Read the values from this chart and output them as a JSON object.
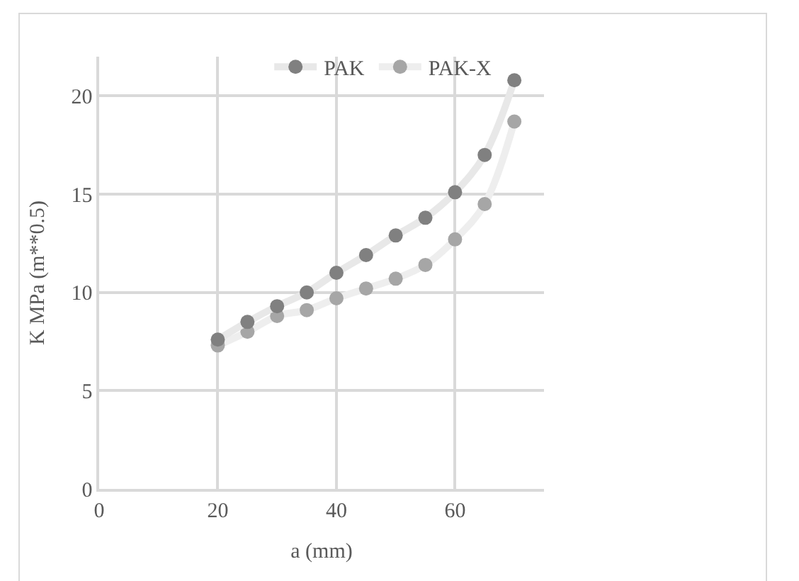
{
  "chart_data": {
    "type": "line",
    "xlabel": "a (mm)",
    "ylabel": "K MPa (m**0.5)",
    "x": [
      20,
      25,
      30,
      35,
      40,
      45,
      50,
      55,
      60,
      65,
      70
    ],
    "series": [
      {
        "name": "PAK",
        "color": "#808080",
        "values": [
          7.6,
          8.5,
          9.3,
          10.0,
          11.0,
          11.9,
          12.9,
          13.8,
          15.1,
          17.0,
          20.8
        ]
      },
      {
        "name": "PAK-X",
        "color": "#a6a6a6",
        "values": [
          7.3,
          8.0,
          8.8,
          9.1,
          9.7,
          10.2,
          10.7,
          11.4,
          12.7,
          14.5,
          18.7
        ]
      }
    ],
    "xlim": [
      0,
      75
    ],
    "xticks": [
      0,
      20,
      40,
      60
    ],
    "ylim": [
      0,
      22
    ],
    "yticks": [
      0,
      5,
      10,
      15,
      20
    ],
    "grid": true,
    "legend": "top right",
    "marker": "circle",
    "line_style": "solid"
  }
}
